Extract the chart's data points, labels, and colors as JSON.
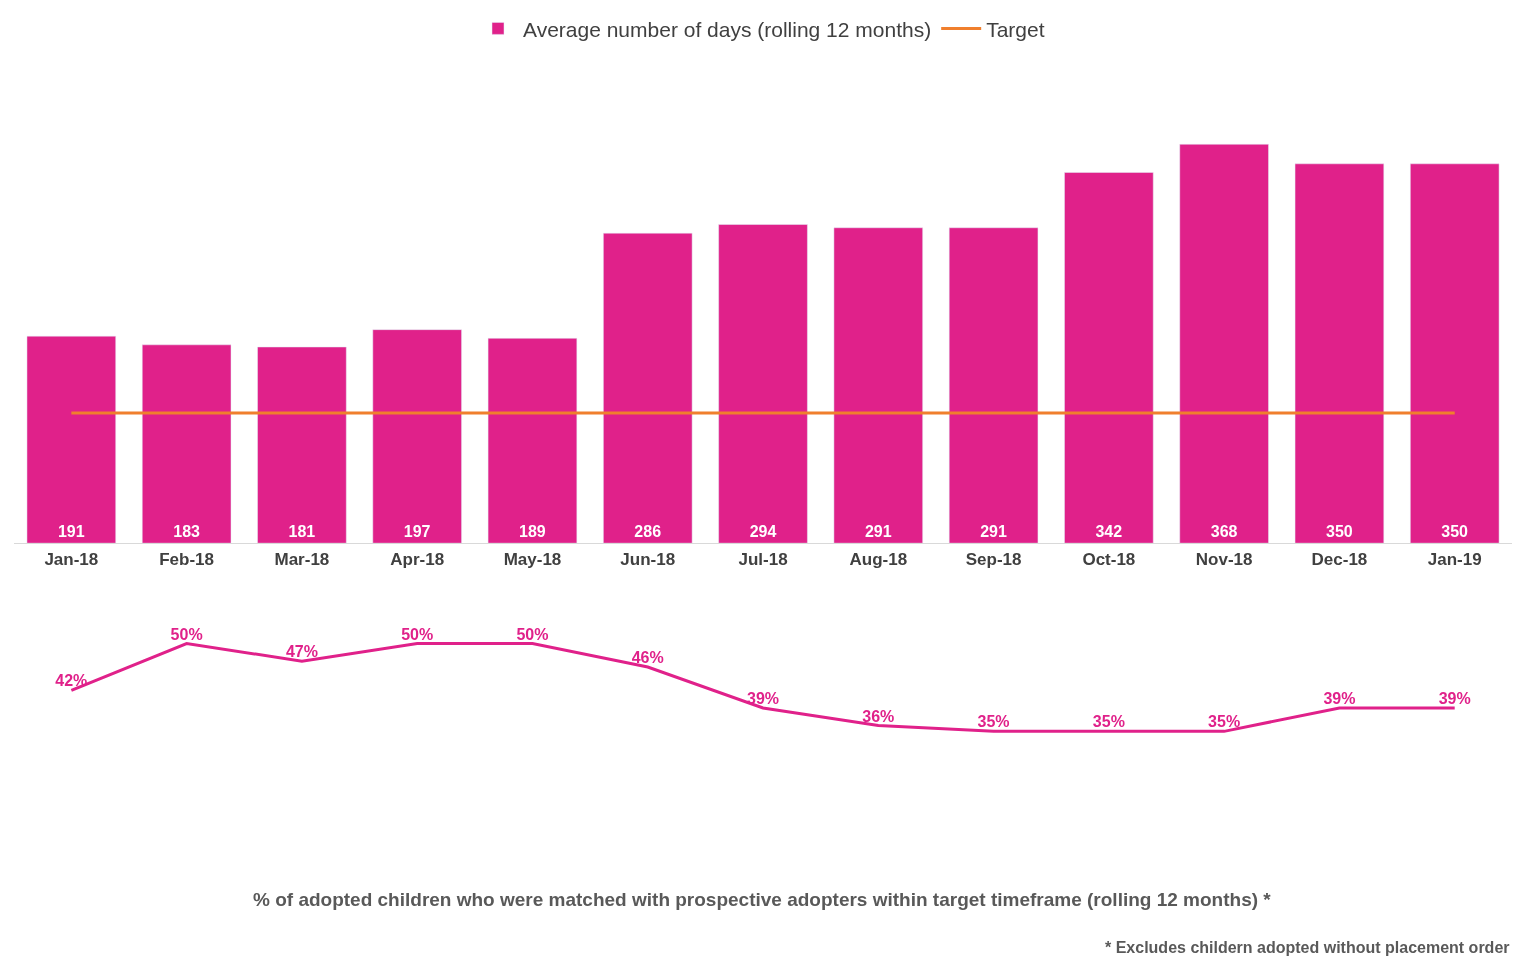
{
  "chart_data": [
    {
      "type": "bar",
      "categories": [
        "Jan-18",
        "Feb-18",
        "Mar-18",
        "Apr-18",
        "May-18",
        "Jun-18",
        "Jul-18",
        "Aug-18",
        "Sep-18",
        "Oct-18",
        "Nov-18",
        "Dec-18",
        "Jan-19"
      ],
      "series": [
        {
          "name": "Average number of days (rolling 12 months)",
          "type": "bar",
          "color": "#e0218a",
          "values": [
            191,
            183,
            181,
            197,
            189,
            286,
            294,
            291,
            291,
            342,
            368,
            350,
            350
          ],
          "value_labels": [
            "191",
            "183",
            "181",
            "197",
            "189",
            "286",
            "294",
            "291",
            "291",
            "342",
            "368",
            "350",
            "350"
          ]
        },
        {
          "name": "Target",
          "type": "line",
          "color": "#f07f2d",
          "values": [
            120,
            120,
            120,
            120,
            120,
            120,
            120,
            120,
            120,
            120,
            120,
            120,
            120
          ]
        }
      ],
      "legend": "top",
      "tick_labels": "x"
    },
    {
      "type": "line",
      "title": "% of adopted children who were matched with prospective adopters within target timeframe (rolling 12 months) *",
      "categories": [
        null,
        null,
        null,
        null,
        null,
        null,
        null,
        null,
        null,
        null,
        null,
        null,
        null
      ],
      "series": [
        {
          "color": "#e0218a",
          "values": [
            42,
            50,
            47,
            50,
            50,
            46,
            39,
            36,
            35,
            35,
            35,
            39,
            39
          ],
          "value_labels": [
            "42%",
            "50%",
            "47%",
            "50%",
            "50%",
            "46%",
            "39%",
            "36%",
            "35%",
            "35%",
            "35%",
            "39%",
            "39%"
          ]
        }
      ],
      "marker": "none",
      "line_style": "solid",
      "tick_labels": "x",
      "annotations": [
        "* Excludes childern adopted without placement order"
      ]
    }
  ]
}
